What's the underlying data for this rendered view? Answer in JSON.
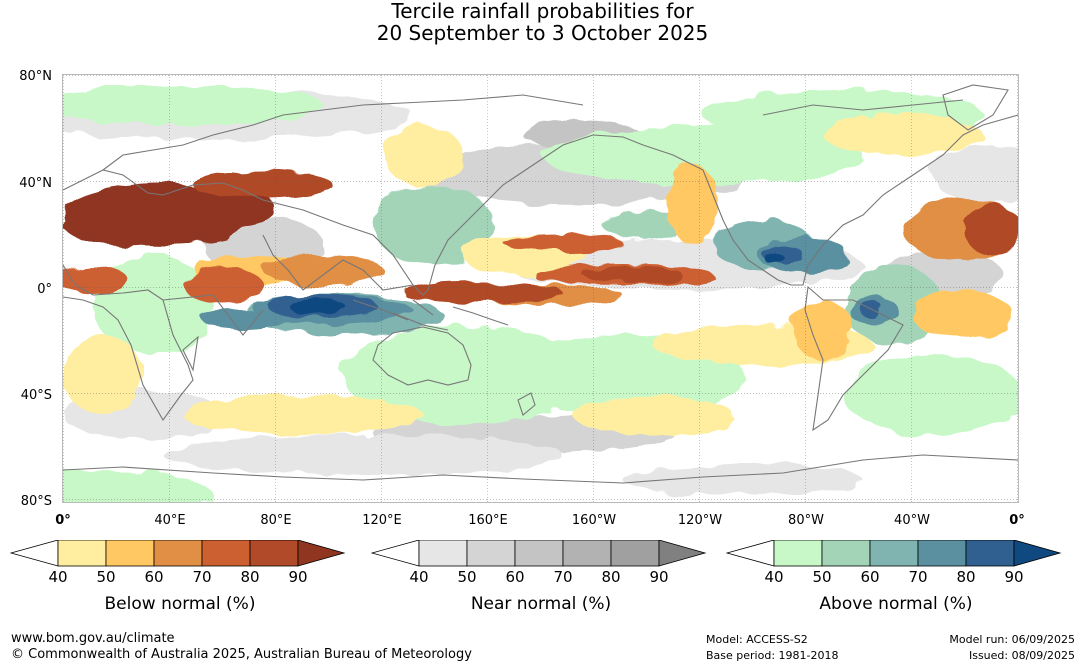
{
  "title": {
    "line1": "Tercile rainfall probabilities for",
    "line2": "20 September to 3 October 2025"
  },
  "map": {
    "lat_labels": [
      "80°N",
      "40°N",
      "0°",
      "40°S",
      "80°S"
    ],
    "lon_labels": [
      "0°",
      "40°E",
      "80°E",
      "120°E",
      "160°E",
      "160°W",
      "120°W",
      "80°W",
      "40°W",
      "0°"
    ],
    "colors": {
      "below": [
        "#ffeea0",
        "#ffc862",
        "#e08f44",
        "#cc6030",
        "#b04a28",
        "#8f3520"
      ],
      "near": [
        "#e6e6e6",
        "#d4d4d4",
        "#c4c4c4",
        "#b2b2b2",
        "#a0a0a0",
        "#808080"
      ],
      "above": [
        "#c8f8c8",
        "#a4d4b8",
        "#80b4b0",
        "#5a90a0",
        "#306090",
        "#104880"
      ],
      "coastline": "#777777"
    }
  },
  "legends": [
    {
      "id": "below",
      "title": "Below normal (%)",
      "ticks": [
        "40",
        "50",
        "60",
        "70",
        "80",
        "90"
      ],
      "colors": [
        "#ffffff",
        "#ffeea0",
        "#ffc862",
        "#e08f44",
        "#cc6030",
        "#b04a28",
        "#8f3520"
      ]
    },
    {
      "id": "near",
      "title": "Near normal (%)",
      "ticks": [
        "40",
        "50",
        "60",
        "70",
        "80",
        "90"
      ],
      "colors": [
        "#ffffff",
        "#e6e6e6",
        "#d4d4d4",
        "#c4c4c4",
        "#b2b2b2",
        "#a0a0a0",
        "#808080"
      ]
    },
    {
      "id": "above",
      "title": "Above normal (%)",
      "ticks": [
        "40",
        "50",
        "60",
        "70",
        "80",
        "90"
      ],
      "colors": [
        "#ffffff",
        "#c8f8c8",
        "#a4d4b8",
        "#80b4b0",
        "#5a90a0",
        "#306090",
        "#104880"
      ]
    }
  ],
  "footer": {
    "url": "www.bom.gov.au/climate",
    "copyright": "© Commonwealth of Australia 2025, Australian Bureau of Meteorology",
    "model": "Model: ACCESS-S2",
    "base_period": "Base period: 1981-2018",
    "model_run": "Model run: 06/09/2025",
    "issued": "Issued: 08/09/2025"
  }
}
